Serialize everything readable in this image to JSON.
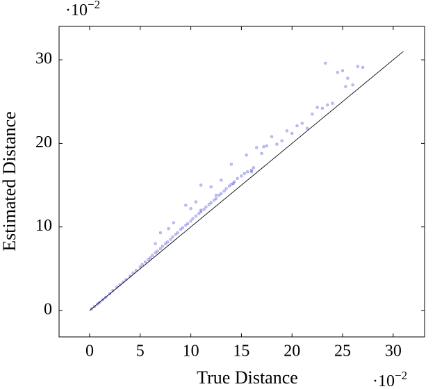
{
  "chart_data": {
    "type": "scatter",
    "x_label": "True Distance",
    "y_label": "Estimated Distance",
    "x_multiplier": {
      "base": "·10",
      "exponent": "−2"
    },
    "y_multiplier": {
      "base": "·10",
      "exponent": "−2"
    },
    "xlim": [
      -3.02,
      33.1
    ],
    "ylim": [
      -3.16,
      34
    ],
    "xticks": [
      0,
      5,
      10,
      15,
      20,
      25,
      30
    ],
    "yticks": [
      0,
      10,
      20,
      30
    ],
    "grid": false,
    "reference_line": {
      "x": [
        0,
        31
      ],
      "y": [
        0,
        31
      ],
      "color": "#000000"
    },
    "series": [
      {
        "color": "#0000cc",
        "x": [
          0.2,
          0.5,
          0.8,
          1,
          1.3,
          1.6,
          2,
          2.3,
          2.7,
          3,
          3.3,
          3.6,
          4,
          4.3,
          4.6,
          5,
          5.2,
          5.5,
          5.8,
          6,
          6.2,
          6.5,
          6.7,
          7,
          7.2,
          7.5,
          7.7,
          8,
          8.2,
          8.5,
          8.7,
          9,
          9.2,
          9.5,
          9.7,
          10,
          10.2,
          10.5,
          10.8,
          11,
          11.3,
          11.5,
          11.8,
          12,
          12.3,
          12.5,
          12.8,
          13,
          13.3,
          13.5,
          13.8,
          14,
          14.3,
          14.6,
          15,
          15.3,
          15.6,
          16,
          16.2,
          6.5,
          7,
          7.8,
          8.3,
          9.5,
          10,
          10.5,
          11,
          12,
          13,
          14,
          15.5,
          16.5,
          17,
          17.5,
          18,
          18.5,
          19,
          19.5,
          20,
          20.5,
          21,
          21.5,
          22,
          22.5,
          23,
          23.5,
          24,
          23.3,
          24.5,
          25,
          25.3,
          25.5,
          26,
          26.5,
          27,
          11,
          12.5,
          14.2,
          16,
          17.2
        ],
        "values": [
          0.2,
          0.5,
          0.8,
          1.0,
          1.3,
          1.6,
          2.0,
          2.4,
          2.8,
          3.1,
          3.4,
          3.7,
          4.1,
          4.5,
          4.8,
          5.2,
          5.5,
          5.8,
          6.1,
          6.3,
          6.6,
          6.9,
          7.1,
          7.4,
          7.7,
          8.0,
          8.2,
          8.5,
          8.8,
          9.1,
          9.3,
          9.7,
          9.9,
          10.2,
          10.4,
          10.7,
          11.0,
          11.3,
          11.6,
          11.8,
          12.1,
          12.4,
          12.7,
          12.9,
          13.2,
          13.4,
          13.8,
          14.0,
          14.3,
          14.6,
          14.9,
          15.1,
          15.4,
          15.8,
          16.1,
          16.4,
          16.6,
          16.8,
          17.1,
          8.0,
          9.3,
          9.8,
          10.5,
          12.6,
          12.2,
          13.0,
          15.0,
          14.8,
          15.6,
          17.5,
          18.6,
          19.5,
          18.8,
          19.7,
          20.8,
          19.9,
          20.3,
          21.5,
          21.2,
          22.1,
          22.4,
          21.8,
          23.5,
          24.3,
          24.2,
          24.6,
          24.8,
          29.6,
          28.5,
          28.7,
          26.8,
          27.8,
          27.0,
          29.2,
          29.1,
          12.0,
          13.8,
          15.2,
          16.6,
          19.6
        ]
      }
    ]
  }
}
